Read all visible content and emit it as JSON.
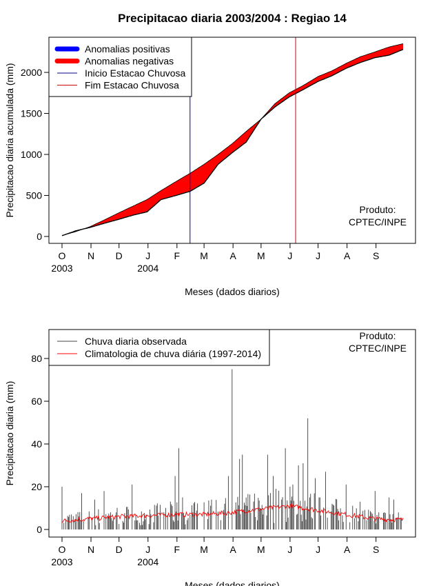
{
  "chart_data": [
    {
      "type": "area",
      "title": "Precipitacao diaria 2003/2004 : Regiao 14",
      "xlabel": "Meses (dados diarios)",
      "ylabel": "Precipitacao diaria acumulada (mm)",
      "ylim": [
        0,
        2350
      ],
      "yticks": [
        0,
        500,
        1000,
        1500,
        2000
      ],
      "x_month_labels": [
        "O",
        "N",
        "D",
        "J",
        "F",
        "M",
        "A",
        "M",
        "J",
        "J",
        "A",
        "S"
      ],
      "x_year_labels": [
        {
          "month_index": 0,
          "label": "2003"
        },
        {
          "month_index": 3,
          "label": "2004"
        }
      ],
      "n_days": 366,
      "observed_cumulative_key_days": [
        0,
        15,
        30,
        45,
        61,
        76,
        91,
        106,
        122,
        137,
        152,
        167,
        182,
        197,
        213,
        228,
        243,
        258,
        274,
        289,
        304,
        319,
        335,
        350,
        365
      ],
      "observed_cumulative_values": [
        10,
        70,
        110,
        160,
        210,
        260,
        300,
        450,
        500,
        550,
        650,
        880,
        1020,
        1150,
        1430,
        1580,
        1700,
        1790,
        1890,
        1960,
        2050,
        2120,
        2180,
        2210,
        2280
      ],
      "climatology_cumulative_values": [
        10,
        60,
        120,
        200,
        290,
        370,
        450,
        560,
        670,
        770,
        880,
        1000,
        1130,
        1280,
        1430,
        1620,
        1750,
        1840,
        1950,
        2020,
        2110,
        2190,
        2250,
        2310,
        2350
      ],
      "rainy_season_start_day": 137,
      "rainy_season_end_day": 250,
      "legend_position": "top-left",
      "legend": [
        {
          "label": "Anomalias positivas",
          "color": "#0000ff",
          "kind": "thick"
        },
        {
          "label": "Anomalias negativas",
          "color": "#ff0000",
          "kind": "thick"
        },
        {
          "label": "Inicio Estacao Chuvosa",
          "color": "#00008b",
          "kind": "thin"
        },
        {
          "label": "Fim Estacao Chuvosa",
          "color": "#cc0000",
          "kind": "thin"
        }
      ],
      "annotation": [
        "Produto:",
        "CPTEC/INPE"
      ]
    },
    {
      "type": "bar",
      "title": "",
      "xlabel": "Meses (dados diarios)",
      "ylabel": "Precipitacao diaria (mm)",
      "ylim": [
        0,
        90
      ],
      "yticks": [
        0,
        20,
        40,
        60,
        80
      ],
      "x_month_labels": [
        "O",
        "N",
        "D",
        "J",
        "F",
        "M",
        "A",
        "M",
        "J",
        "J",
        "A",
        "S"
      ],
      "x_year_labels": [
        {
          "month_index": 0,
          "label": "2003"
        },
        {
          "month_index": 3,
          "label": "2004"
        }
      ],
      "n_days": 366,
      "observed_peaks": [
        {
          "day": 0,
          "value": 20
        },
        {
          "day": 10,
          "value": 7
        },
        {
          "day": 21,
          "value": 17
        },
        {
          "day": 35,
          "value": 14
        },
        {
          "day": 45,
          "value": 18
        },
        {
          "day": 58,
          "value": 8
        },
        {
          "day": 75,
          "value": 21
        },
        {
          "day": 90,
          "value": 7
        },
        {
          "day": 118,
          "value": 11
        },
        {
          "day": 121,
          "value": 25
        },
        {
          "day": 125,
          "value": 38
        },
        {
          "day": 129,
          "value": 15
        },
        {
          "day": 140,
          "value": 8
        },
        {
          "day": 160,
          "value": 14
        },
        {
          "day": 174,
          "value": 12
        },
        {
          "day": 178,
          "value": 25
        },
        {
          "day": 182,
          "value": 75
        },
        {
          "day": 190,
          "value": 33
        },
        {
          "day": 193,
          "value": 35
        },
        {
          "day": 198,
          "value": 11
        },
        {
          "day": 212,
          "value": 10
        },
        {
          "day": 220,
          "value": 35
        },
        {
          "day": 226,
          "value": 25
        },
        {
          "day": 229,
          "value": 19
        },
        {
          "day": 235,
          "value": 14
        },
        {
          "day": 239,
          "value": 38
        },
        {
          "day": 247,
          "value": 21
        },
        {
          "day": 253,
          "value": 30
        },
        {
          "day": 258,
          "value": 31
        },
        {
          "day": 263,
          "value": 52
        },
        {
          "day": 271,
          "value": 24
        },
        {
          "day": 275,
          "value": 15
        },
        {
          "day": 282,
          "value": 27
        },
        {
          "day": 289,
          "value": 12
        },
        {
          "day": 304,
          "value": 21
        },
        {
          "day": 319,
          "value": 13
        },
        {
          "day": 335,
          "value": 18
        },
        {
          "day": 350,
          "value": 15
        },
        {
          "day": 355,
          "value": 14
        },
        {
          "day": 360,
          "value": 8
        }
      ],
      "climatology_key_days": [
        0,
        30,
        61,
        91,
        122,
        152,
        182,
        213,
        243,
        274,
        304,
        335,
        365
      ],
      "climatology_values": [
        4,
        5,
        6,
        6.5,
        7,
        7,
        8,
        9.5,
        11,
        9,
        7,
        5,
        4.5
      ],
      "legend_position": "top-left",
      "legend": [
        {
          "label": "Chuva diaria observada",
          "color": "#444444"
        },
        {
          "label": "Climatologia de chuva diária (1997-2014)",
          "color": "#ff0000"
        }
      ],
      "annotation": [
        "Produto:",
        "CPTEC/INPE"
      ]
    }
  ]
}
